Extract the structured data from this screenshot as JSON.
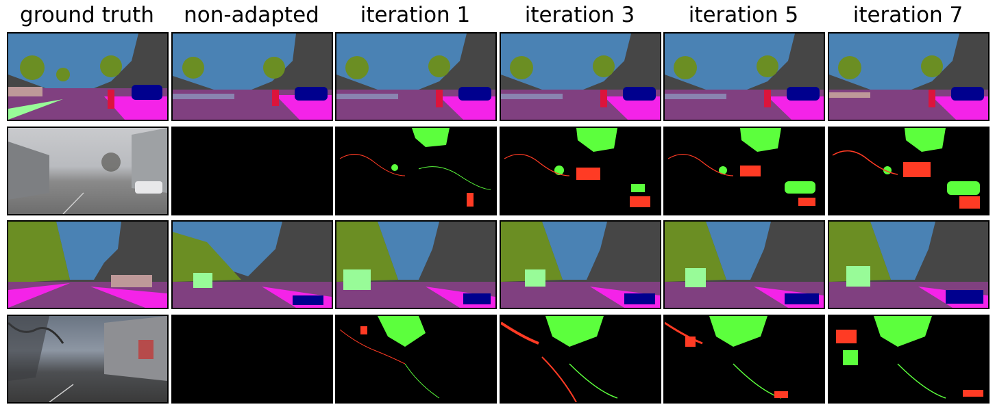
{
  "columns": [
    {
      "label": "ground truth"
    },
    {
      "label": "non-adapted"
    },
    {
      "label": "iteration 1"
    },
    {
      "label": "iteration 3"
    },
    {
      "label": "iteration 5"
    },
    {
      "label": "iteration 7"
    }
  ],
  "rows": [
    {
      "kind": "segmentation"
    },
    {
      "kind": "difference"
    },
    {
      "kind": "segmentation"
    },
    {
      "kind": "difference"
    }
  ],
  "palette": {
    "sky": "#4a82b4",
    "building": "#464646",
    "vegetation": "#6b8e23",
    "road": "#804080",
    "sidewalk": "#f423e8",
    "car": "#00008e",
    "person": "#dc143c",
    "terrain": "#98fb98",
    "wall": "#be9999",
    "correct_gain": "#5cff3d",
    "error": "#ff3b24"
  }
}
